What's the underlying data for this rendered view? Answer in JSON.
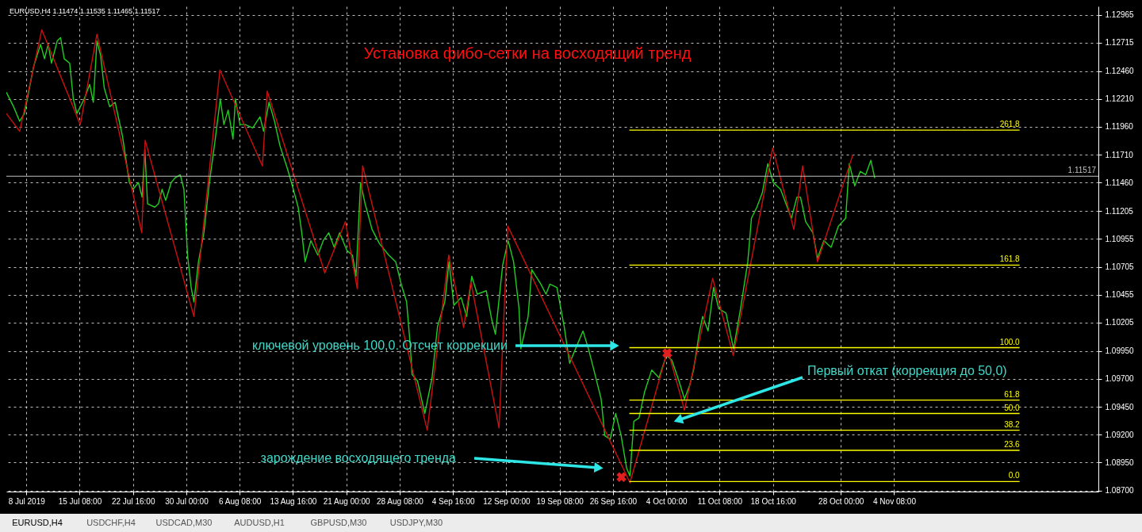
{
  "chart_data": {
    "type": "line",
    "title": "Установка фибо-сетки на восходящий тренд",
    "annotations": [
      "EURUSD,H4  1.11474 1.11535 1.11465 1.11517",
      "EURUSD,H4",
      "USDCHF,H4",
      "USDCAD,M30",
      "AUDUSD,H1",
      "GBPUSD,M30",
      "USDJPY,M30",
      "ключевой уровень 100,0. Отсчет коррекции",
      "зарождение восходящего тренда",
      "Первый откат (коррекция до 50,0)",
      {
        "text": "261.8",
        "x": "2019-11-21T14:00",
        "y": 1.1193
      },
      {
        "text": "161.8",
        "x": "2019-11-21T14:00",
        "y": 1.1072
      },
      {
        "text": "100.0",
        "x": "2019-11-21T14:00",
        "y": 1.0998
      },
      {
        "text": "61.8",
        "x": "2019-11-21T14:00",
        "y": 1.0951
      },
      {
        "text": "50.0",
        "x": "2019-11-21T14:00",
        "y": 1.0939
      },
      {
        "text": "38.2",
        "x": "2019-11-21T14:00",
        "y": 1.0924
      },
      {
        "text": "23.6",
        "x": "2019-11-21T14:00",
        "y": 1.0906
      },
      {
        "text": "0.0",
        "x": "2019-11-21T14:00",
        "y": 1.0878
      }
    ],
    "xlim": [
      "2019-07-05T06:00",
      "2019-12-02T10:00"
    ],
    "ylim": [
      1.0869,
      1.1304
    ],
    "xticks": [
      {
        "value": "2019-07-08T00:00",
        "label": "8 Jul 2019"
      },
      {
        "value": "2019-07-15T08:00",
        "label": "15 Jul 08:00"
      },
      {
        "value": "2019-07-22T16:00",
        "label": "22 Jul 16:00"
      },
      {
        "value": "2019-07-30T00:00",
        "label": "30 Jul 00:00"
      },
      {
        "value": "2019-08-06T08:00",
        "label": "6 Aug 08:00"
      },
      {
        "value": "2019-08-13T16:00",
        "label": "13 Aug 16:00"
      },
      {
        "value": "2019-08-21T00:00",
        "label": "21 Aug 00:00"
      },
      {
        "value": "2019-08-28T08:00",
        "label": "28 Aug 08:00"
      },
      {
        "value": "2019-09-04T16:00",
        "label": "4 Sep 16:00"
      },
      {
        "value": "2019-09-12T00:00",
        "label": "12 Sep 00:00"
      },
      {
        "value": "2019-09-19T08:00",
        "label": "19 Sep 08:00"
      },
      {
        "value": "2019-09-26T16:00",
        "label": "26 Sep 16:00"
      },
      {
        "value": "2019-10-04T00:00",
        "label": "4 Oct 00:00"
      },
      {
        "value": "2019-10-11T08:00",
        "label": "11 Oct 08:00"
      },
      {
        "value": "2019-10-18T16:00",
        "label": "18 Oct 16:00"
      },
      {
        "value": "2019-10-28T00:00",
        "label": "28 Oct 00:00"
      },
      {
        "value": "2019-11-04T08:00",
        "label": "4 Nov 08:00"
      }
    ],
    "yticks": [
      {
        "value": 1.087,
        "label": "1.08700"
      },
      {
        "value": 1.0895,
        "label": "1.08950"
      },
      {
        "value": 1.092,
        "label": "1.09200"
      },
      {
        "value": 1.0945,
        "label": "1.09450"
      },
      {
        "value": 1.097,
        "label": "1.09700"
      },
      {
        "value": 1.0995,
        "label": "1.09950"
      },
      {
        "value": 1.10205,
        "label": "1.10205"
      },
      {
        "value": 1.10455,
        "label": "1.10455"
      },
      {
        "value": 1.10705,
        "label": "1.10705"
      },
      {
        "value": 1.10955,
        "label": "1.10955"
      },
      {
        "value": 1.11205,
        "label": "1.11205"
      },
      {
        "value": 1.1146,
        "label": "1.11460"
      },
      {
        "value": 1.1171,
        "label": "1.11710"
      },
      {
        "value": 1.1196,
        "label": "1.11960"
      },
      {
        "value": 1.1221,
        "label": "1.12210"
      },
      {
        "value": 1.1246,
        "label": "1.12460"
      },
      {
        "value": 1.12715,
        "label": "1.12715"
      },
      {
        "value": 1.12965,
        "label": "1.12965"
      }
    ],
    "grid": true,
    "ref_lines": [
      {
        "axis": "y",
        "value": 1.11517,
        "label": "1.11517",
        "color": "#c0c0c0"
      }
    ],
    "series": [
      {
        "type": "line",
        "color": "#22cc22",
        "x": [
          "2019-07-05T06:00",
          "2019-07-06T06:00",
          "2019-07-07T02:00",
          "2019-07-07T18:00",
          "2019-07-09T00:00",
          "2019-07-09T23:00",
          "2019-07-10T12:00",
          "2019-07-11T00:00",
          "2019-07-11T11:00",
          "2019-07-12T06:00",
          "2019-07-12T17:00",
          "2019-07-13T05:00",
          "2019-07-13T23:00",
          "2019-07-14T11:00",
          "2019-07-14T23:00",
          "2019-07-15T23:00",
          "2019-07-16T17:00",
          "2019-07-17T05:00",
          "2019-07-17T17:00",
          "2019-07-18T05:00",
          "2019-07-18T17:00",
          "2019-07-19T11:00",
          "2019-07-20T05:00",
          "2019-07-21T05:00",
          "2019-07-22T04:00",
          "2019-07-22T16:00",
          "2019-07-23T10:00",
          "2019-07-23T22:00",
          "2019-07-24T07:00",
          "2019-07-24T16:00",
          "2019-07-25T16:00",
          "2019-07-26T04:00",
          "2019-07-26T16:00",
          "2019-07-27T04:00",
          "2019-07-27T22:00",
          "2019-07-28T10:00",
          "2019-07-29T04:00",
          "2019-07-29T16:00",
          "2019-07-30T04:00",
          "2019-07-30T16:00",
          "2019-07-31T01:00",
          "2019-07-31T16:00",
          "2019-08-01T10:00",
          "2019-08-02T04:00",
          "2019-08-02T22:00",
          "2019-08-03T16:00",
          "2019-08-04T04:00",
          "2019-08-04T18:00",
          "2019-08-05T10:00",
          "2019-08-05T18:00",
          "2019-08-06T09:00",
          "2019-08-07T03:00",
          "2019-08-08T03:00",
          "2019-08-09T03:00",
          "2019-08-09T15:00",
          "2019-08-10T09:00",
          "2019-08-11T03:00",
          "2019-08-11T21:00",
          "2019-08-12T21:00",
          "2019-08-13T14:00",
          "2019-08-14T09:00",
          "2019-08-14T21:00",
          "2019-08-15T08:00",
          "2019-08-16T03:00",
          "2019-08-17T02:00",
          "2019-08-17T20:00",
          "2019-08-18T14:00",
          "2019-08-19T08:00",
          "2019-08-20T02:00",
          "2019-08-21T02:00",
          "2019-08-21T20:00",
          "2019-08-22T08:00",
          "2019-08-22T23:00",
          "2019-08-23T14:00",
          "2019-08-24T13:00",
          "2019-08-25T14:00",
          "2019-08-26T20:00",
          "2019-08-27T19:00",
          "2019-08-28T13:00",
          "2019-08-29T07:00",
          "2019-08-29T19:00",
          "2019-08-30T01:00",
          "2019-08-30T19:00",
          "2019-08-31T19:00",
          "2019-09-01T19:00",
          "2019-09-02T13:00",
          "2019-09-03T13:00",
          "2019-09-04T03:00",
          "2019-09-04T19:00",
          "2019-09-05T19:00",
          "2019-09-06T13:00",
          "2019-09-07T06:00",
          "2019-09-08T00:00",
          "2019-09-09T06:00",
          "2019-09-10T00:00",
          "2019-09-10T12:00",
          "2019-09-11T12:00",
          "2019-09-12T06:00",
          "2019-09-13T00:00",
          "2019-09-13T18:00",
          "2019-09-14T00:00",
          "2019-09-15T00:00",
          "2019-09-15T12:00",
          "2019-09-16T18:00",
          "2019-09-17T11:00",
          "2019-09-18T00:00",
          "2019-09-18T23:00",
          "2019-09-19T23:00",
          "2019-09-20T17:00",
          "2019-09-21T08:00",
          "2019-09-22T13:00",
          "2019-09-23T07:00",
          "2019-09-24T01:00",
          "2019-09-25T01:00",
          "2019-09-25T13:00",
          "2019-09-26T07:00",
          "2019-09-27T01:00",
          "2019-09-27T19:00",
          "2019-09-28T13:00",
          "2019-09-29T00:00",
          "2019-09-29T13:00",
          "2019-09-30T06:00",
          "2019-10-01T00:00",
          "2019-10-02T00:00",
          "2019-10-03T00:00",
          "2019-10-04T00:00",
          "2019-10-04T18:00",
          "2019-10-05T18:00",
          "2019-10-06T12:00",
          "2019-10-07T06:00",
          "2019-10-07T18:00",
          "2019-10-08T12:00",
          "2019-10-09T00:00",
          "2019-10-09T18:00",
          "2019-10-10T12:00",
          "2019-10-11T05:00",
          "2019-10-12T05:00",
          "2019-10-13T06:00",
          "2019-10-14T05:00",
          "2019-10-15T05:00",
          "2019-10-15T17:00",
          "2019-10-16T11:00",
          "2019-10-17T05:00",
          "2019-10-17T23:00",
          "2019-10-18T17:00",
          "2019-10-19T17:00",
          "2019-10-20T11:00",
          "2019-10-21T05:00",
          "2019-10-21T23:00",
          "2019-10-22T11:00",
          "2019-10-23T04:00",
          "2019-10-24T04:00",
          "2019-10-24T19:00",
          "2019-10-25T16:00",
          "2019-10-26T16:00",
          "2019-10-27T16:00",
          "2019-10-28T16:00",
          "2019-10-29T04:00",
          "2019-10-29T22:00",
          "2019-10-30T16:00",
          "2019-10-31T10:00",
          "2019-11-01T03:00",
          "2019-11-01T16:00"
        ],
        "values": [
          1.1227,
          1.1214,
          1.1201,
          1.1208,
          1.125,
          1.127,
          1.1257,
          1.127,
          1.1253,
          1.1273,
          1.1276,
          1.1257,
          1.1253,
          1.1221,
          1.1208,
          1.1221,
          1.1234,
          1.1218,
          1.1273,
          1.126,
          1.1231,
          1.1214,
          1.1218,
          1.1188,
          1.1146,
          1.114,
          1.1146,
          1.1133,
          1.1176,
          1.1127,
          1.1124,
          1.1127,
          1.114,
          1.113,
          1.1146,
          1.115,
          1.1153,
          1.114,
          1.1081,
          1.1052,
          1.1039,
          1.1075,
          1.1101,
          1.1146,
          1.1182,
          1.1221,
          1.1198,
          1.1211,
          1.1185,
          1.1221,
          1.1198,
          1.1198,
          1.1195,
          1.1205,
          1.1192,
          1.1218,
          1.1201,
          1.1179,
          1.1159,
          1.1143,
          1.1124,
          1.1101,
          1.1075,
          1.1094,
          1.1081,
          1.1094,
          1.1101,
          1.1088,
          1.1101,
          1.1085,
          1.1081,
          1.1062,
          1.1146,
          1.1127,
          1.1104,
          1.1091,
          1.1081,
          1.1075,
          1.1055,
          1.1039,
          1.1,
          1.0974,
          1.0968,
          1.0939,
          1.0971,
          1.1017,
          1.1039,
          1.1075,
          1.1036,
          1.1043,
          1.1026,
          1.1062,
          1.1046,
          1.1049,
          1.1023,
          1.101,
          1.1072,
          1.1094,
          1.1075,
          1.1033,
          1.0997,
          1.1026,
          1.1068,
          1.1055,
          1.1046,
          1.1055,
          1.1052,
          1.1017,
          1.0984,
          1.0994,
          1.1013,
          1.0997,
          1.0978,
          1.0952,
          1.0919,
          1.0916,
          1.0939,
          1.0919,
          1.089,
          1.0883,
          1.0932,
          1.0935,
          1.0958,
          1.0978,
          1.0971,
          1.0991,
          1.0987,
          1.0968,
          1.0952,
          1.0965,
          1.0978,
          1.101,
          1.1026,
          1.1013,
          1.1052,
          1.1033,
          1.1029,
          1.0997,
          1.1033,
          1.1075,
          1.1114,
          1.1124,
          1.1137,
          1.1163,
          1.1146,
          1.114,
          1.1127,
          1.1114,
          1.1133,
          1.1133,
          1.1111,
          1.1101,
          1.1078,
          1.1094,
          1.1088,
          1.1107,
          1.1114,
          1.1163,
          1.1143,
          1.1156,
          1.1153,
          1.1166,
          1.115
        ]
      },
      {
        "type": "line",
        "color": "#cc1010",
        "x": [
          "2019-07-05T06:00",
          "2019-07-07T02:00",
          "2019-07-10T03:00",
          "2019-07-15T10:00",
          "2019-07-17T17:00",
          "2019-07-23T21:00",
          "2019-07-24T08:00",
          "2019-07-31T01:00",
          "2019-08-03T15:00",
          "2019-08-09T11:00",
          "2019-08-10T03:00",
          "2019-08-18T01:00",
          "2019-08-20T21:00",
          "2019-08-22T12:00",
          "2019-08-23T06:00",
          "2019-09-01T03:00",
          "2019-09-04T02:00",
          "2019-09-06T03:00",
          "2019-09-07T03:00",
          "2019-09-11T00:00",
          "2019-09-12T05:00",
          "2019-09-29T00:00",
          "2019-10-04T05:00",
          "2019-10-06T12:00",
          "2019-10-10T09:00",
          "2019-10-13T05:00",
          "2019-10-18T15:00",
          "2019-10-21T13:00",
          "2019-10-22T18:00",
          "2019-10-24T19:00",
          "2019-10-29T16:00"
        ],
        "values": [
          1.1208,
          1.1192,
          1.1283,
          1.1198,
          1.1279,
          1.1101,
          1.1184,
          1.1026,
          1.1247,
          1.1161,
          1.1228,
          1.1065,
          1.1111,
          1.1051,
          1.1161,
          1.0924,
          1.1081,
          1.1016,
          1.1057,
          1.0926,
          1.1107,
          1.0877,
          1.0996,
          1.0942,
          1.106,
          1.0991,
          1.1177,
          1.1104,
          1.1161,
          1.1075,
          1.1171
        ]
      },
      {
        "type": "line",
        "color": "#ffff00",
        "x": [
          "2019-09-28T22:00",
          "2019-11-21T14:00"
        ],
        "values": [
          1.1193,
          1.1193
        ]
      },
      {
        "type": "line",
        "color": "#ffff00",
        "x": [
          "2019-09-28T22:00",
          "2019-11-21T14:00"
        ],
        "values": [
          1.1072,
          1.1072
        ]
      },
      {
        "type": "line",
        "color": "#ffff00",
        "x": [
          "2019-09-28T22:00",
          "2019-11-21T14:00"
        ],
        "values": [
          1.0998,
          1.0998
        ]
      },
      {
        "type": "line",
        "color": "#ffff00",
        "x": [
          "2019-09-28T22:00",
          "2019-11-21T14:00"
        ],
        "values": [
          1.0951,
          1.0951
        ]
      },
      {
        "type": "line",
        "color": "#ffff00",
        "x": [
          "2019-09-28T22:00",
          "2019-11-21T14:00"
        ],
        "values": [
          1.0939,
          1.0939
        ]
      },
      {
        "type": "line",
        "color": "#ffff00",
        "x": [
          "2019-09-28T22:00",
          "2019-11-21T14:00"
        ],
        "values": [
          1.0924,
          1.0924
        ]
      },
      {
        "type": "line",
        "color": "#ffff00",
        "x": [
          "2019-09-28T22:00",
          "2019-11-21T14:00"
        ],
        "values": [
          1.0906,
          1.0906
        ]
      },
      {
        "type": "line",
        "color": "#ffff00",
        "x": [
          "2019-09-28T22:00",
          "2019-11-21T14:00"
        ],
        "values": [
          1.0878,
          1.0878
        ]
      },
      {
        "type": "scatter",
        "marker": "cross",
        "color": "#e02020",
        "x": [
          "2019-09-27T20:00",
          "2019-10-04T03:00"
        ],
        "values": [
          1.0882,
          1.0993
        ]
      }
    ]
  }
}
